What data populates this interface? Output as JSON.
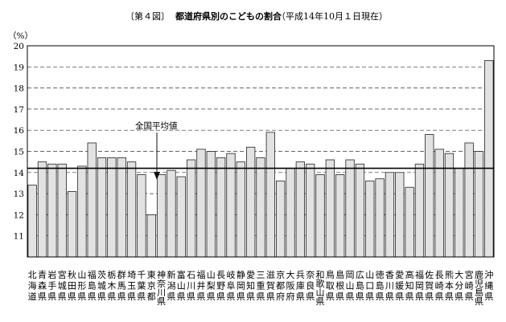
{
  "chart_data": {
    "type": "bar",
    "figure_no": "〔第４図〕",
    "title": "都道府県別のこどもの割合",
    "subtitle": "（平成14年10月１日現在）",
    "ylabel": "（%）",
    "ylim": [
      10,
      20
    ],
    "y_ticks": [
      "",
      "11",
      "12",
      "13",
      "14",
      "15",
      "16",
      "17",
      "18",
      "19",
      "20"
    ],
    "grid": "dashed horizontal",
    "national_average": 14.2,
    "national_average_label": "全国平均値",
    "categories": [
      "北海道",
      "青森県",
      "岩手県",
      "宮城県",
      "秋田県",
      "山形県",
      "福島県",
      "茨城県",
      "栃木県",
      "群馬県",
      "埼玉県",
      "千葉県",
      "東京都",
      "神奈川県",
      "新潟県",
      "富山県",
      "石川県",
      "福井県",
      "山梨県",
      "長野県",
      "岐阜県",
      "静岡県",
      "愛知県",
      "三重県",
      "滋賀県",
      "京都府",
      "大阪府",
      "兵庫県",
      "奈良県",
      "和歌山県",
      "鳥取県",
      "島根県",
      "岡山県",
      "広島県",
      "山口県",
      "徳島県",
      "香川県",
      "愛媛県",
      "高知県",
      "福岡県",
      "佐賀県",
      "長崎県",
      "熊本県",
      "大分県",
      "宮崎県",
      "鹿児島県",
      "沖縄県"
    ],
    "values": [
      13.4,
      14.5,
      14.4,
      14.4,
      13.1,
      14.3,
      15.4,
      14.7,
      14.7,
      14.7,
      14.5,
      13.9,
      12.0,
      13.9,
      14.1,
      13.8,
      14.6,
      15.1,
      15.0,
      14.7,
      14.9,
      14.5,
      15.2,
      14.7,
      15.9,
      13.6,
      14.2,
      14.5,
      14.4,
      13.9,
      14.6,
      13.9,
      14.6,
      14.4,
      13.6,
      13.7,
      14.0,
      14.0,
      13.3,
      14.4,
      15.8,
      15.1,
      14.9,
      14.2,
      15.4,
      15.0,
      19.3
    ]
  }
}
